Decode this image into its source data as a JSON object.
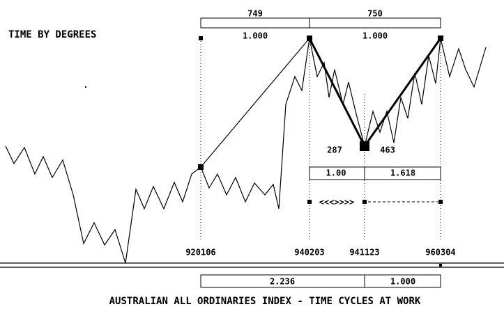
{
  "title": "TIME BY DEGREES",
  "top_box": {
    "left": "749",
    "right": "750",
    "left_ratio": "1.000",
    "right_ratio": "1.000"
  },
  "mid_labels": {
    "left": "287",
    "right": "463"
  },
  "ratio_box": {
    "left": "1.00",
    "right": "1.618"
  },
  "arrow_text": "<<<>>>>",
  "dates": [
    "920106",
    "940203",
    "941123",
    "960304"
  ],
  "bottom_box": {
    "left": "2.236",
    "right": "1.000"
  },
  "footer": "AUSTRALIAN ALL ORDINARIES INDEX - TIME CYCLES AT WORK"
}
